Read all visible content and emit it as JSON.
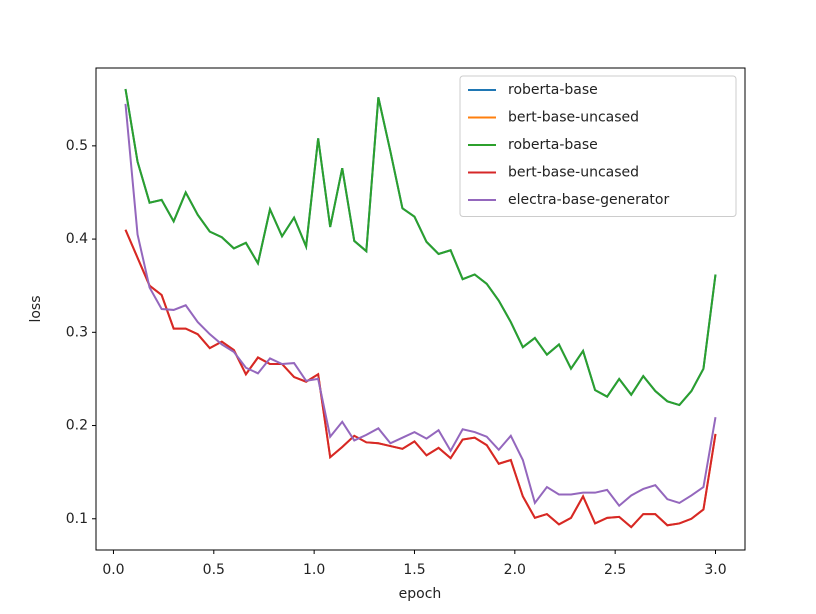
{
  "chart_data": {
    "type": "line",
    "x_label": "epoch",
    "y_label": "loss",
    "x": [
      0.06,
      0.12,
      0.18,
      0.24,
      0.3,
      0.36,
      0.42,
      0.48,
      0.54,
      0.6,
      0.66,
      0.72,
      0.78,
      0.84,
      0.9,
      0.96,
      1.02,
      1.08,
      1.14,
      1.2,
      1.26,
      1.32,
      1.38,
      1.44,
      1.5,
      1.56,
      1.62,
      1.68,
      1.74,
      1.8,
      1.86,
      1.92,
      1.98,
      2.04,
      2.1,
      2.16,
      2.22,
      2.28,
      2.34,
      2.4,
      2.46,
      2.52,
      2.58,
      2.64,
      2.7,
      2.76,
      2.82,
      2.88,
      2.94,
      3.0
    ],
    "xlim": [
      -0.087,
      3.147
    ],
    "xticks": [
      {
        "value": 0,
        "label": "0.0"
      },
      0.5,
      {
        "value": 1,
        "label": "1.0"
      },
      1.5,
      {
        "value": 2,
        "label": "2.0"
      },
      2.5,
      {
        "value": 3,
        "label": "3.0"
      }
    ],
    "ylim": [
      0.0665,
      0.5835
    ],
    "yticks": [
      0.1,
      0.2,
      0.3,
      0.4,
      0.5
    ],
    "legend": "upper right",
    "series": [
      {
        "name": "roberta-base",
        "color": "#1f77b4",
        "values": [
          0.561,
          0.483,
          0.439,
          0.442,
          0.419,
          0.45,
          0.426,
          0.408,
          0.402,
          0.39,
          0.396,
          0.374,
          0.432,
          0.403,
          0.423,
          0.392,
          0.508,
          0.413,
          0.476,
          0.398,
          0.387,
          0.552,
          0.494,
          0.433,
          0.424,
          0.397,
          0.384,
          0.388,
          0.357,
          0.362,
          0.352,
          0.334,
          0.311,
          0.284,
          0.294,
          0.276,
          0.287,
          0.261,
          0.28,
          0.238,
          0.231,
          0.25,
          0.233,
          0.253,
          0.237,
          0.226,
          0.222,
          0.237,
          0.261,
          0.362
        ]
      },
      {
        "name": "bert-base-uncased",
        "color": "#ff7f0e",
        "values": [
          0.41,
          0.38,
          0.35,
          0.34,
          0.304,
          0.304,
          0.298,
          0.283,
          0.29,
          0.281,
          0.255,
          0.273,
          0.266,
          0.266,
          0.252,
          0.247,
          0.255,
          0.166,
          0.177,
          0.189,
          0.182,
          0.181,
          0.178,
          0.175,
          0.183,
          0.168,
          0.176,
          0.165,
          0.185,
          0.187,
          0.179,
          0.159,
          0.163,
          0.124,
          0.101,
          0.105,
          0.094,
          0.101,
          0.124,
          0.095,
          0.101,
          0.102,
          0.091,
          0.105,
          0.105,
          0.093,
          0.095,
          0.1,
          0.11,
          0.191
        ]
      },
      {
        "name": "roberta-base",
        "color": "#2ca02c",
        "values": [
          0.561,
          0.483,
          0.439,
          0.442,
          0.419,
          0.45,
          0.426,
          0.408,
          0.402,
          0.39,
          0.396,
          0.374,
          0.432,
          0.403,
          0.423,
          0.392,
          0.508,
          0.413,
          0.476,
          0.398,
          0.387,
          0.552,
          0.494,
          0.433,
          0.424,
          0.397,
          0.384,
          0.388,
          0.357,
          0.362,
          0.352,
          0.334,
          0.311,
          0.284,
          0.294,
          0.276,
          0.287,
          0.261,
          0.28,
          0.238,
          0.231,
          0.25,
          0.233,
          0.253,
          0.237,
          0.226,
          0.222,
          0.237,
          0.261,
          0.362
        ]
      },
      {
        "name": "bert-base-uncased",
        "color": "#d62728",
        "values": [
          0.41,
          0.38,
          0.35,
          0.34,
          0.304,
          0.304,
          0.298,
          0.283,
          0.29,
          0.281,
          0.255,
          0.273,
          0.266,
          0.266,
          0.252,
          0.247,
          0.255,
          0.166,
          0.177,
          0.189,
          0.182,
          0.181,
          0.178,
          0.175,
          0.183,
          0.168,
          0.176,
          0.165,
          0.185,
          0.187,
          0.179,
          0.159,
          0.163,
          0.124,
          0.101,
          0.105,
          0.094,
          0.101,
          0.124,
          0.095,
          0.101,
          0.102,
          0.091,
          0.105,
          0.105,
          0.093,
          0.095,
          0.1,
          0.11,
          0.191
        ]
      },
      {
        "name": "electra-base-generator",
        "color": "#9467bd",
        "values": [
          0.545,
          0.405,
          0.348,
          0.325,
          0.324,
          0.329,
          0.311,
          0.298,
          0.287,
          0.279,
          0.262,
          0.256,
          0.272,
          0.266,
          0.267,
          0.248,
          0.25,
          0.188,
          0.204,
          0.184,
          0.19,
          0.197,
          0.181,
          0.187,
          0.193,
          0.186,
          0.195,
          0.173,
          0.196,
          0.193,
          0.188,
          0.174,
          0.189,
          0.163,
          0.117,
          0.134,
          0.126,
          0.126,
          0.128,
          0.128,
          0.131,
          0.114,
          0.125,
          0.132,
          0.136,
          0.121,
          0.117,
          0.125,
          0.134,
          0.209
        ]
      }
    ]
  }
}
